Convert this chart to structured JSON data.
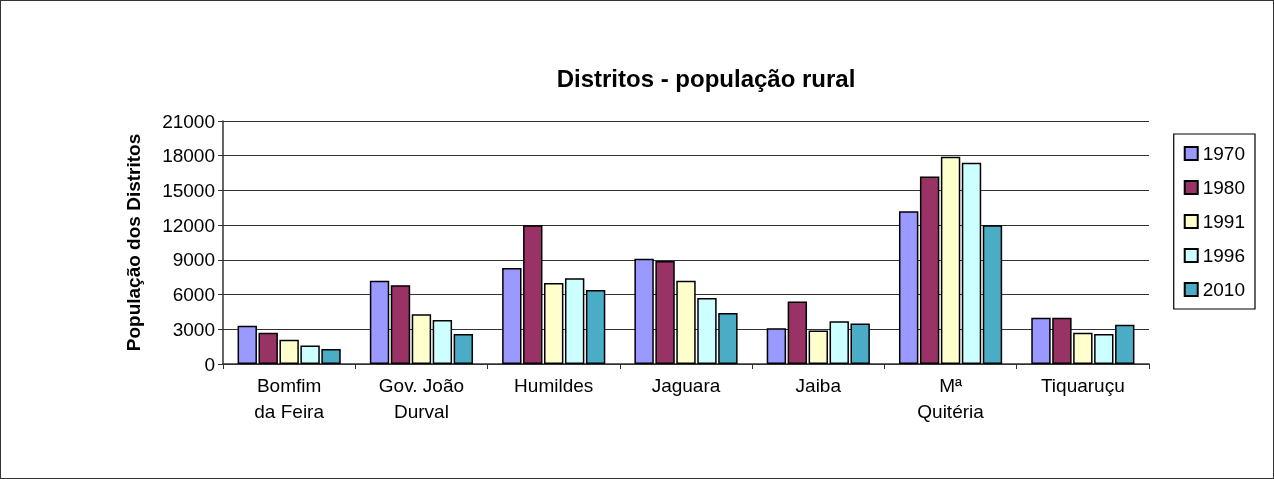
{
  "chart_data": {
    "type": "bar",
    "title": "Distritos - população rural",
    "ylabel": "População dos Distritos",
    "categories": [
      "Bomfim\nda Feira",
      "Gov. João\nDurval",
      "Humildes",
      "Jaguara",
      "Jaiba",
      "Mª\nQuitéria",
      "Tiquaruçu"
    ],
    "series": [
      {
        "name": "1970",
        "color": "#9999ff",
        "values": [
          3300,
          7200,
          8300,
          9100,
          3100,
          13200,
          4000
        ]
      },
      {
        "name": "1980",
        "color": "#993366",
        "values": [
          2700,
          6800,
          12000,
          8900,
          5400,
          16200,
          4000
        ]
      },
      {
        "name": "1991",
        "color": "#ffffcc",
        "values": [
          2100,
          4300,
          7000,
          7200,
          2900,
          17900,
          2700
        ]
      },
      {
        "name": "1996",
        "color": "#ccffff",
        "values": [
          1600,
          3800,
          7400,
          5700,
          3700,
          17400,
          2600
        ]
      },
      {
        "name": "2010",
        "color": "#4bacc6",
        "values": [
          1300,
          2600,
          6400,
          4400,
          3500,
          12000,
          3400
        ]
      }
    ],
    "ylim": [
      0,
      21000
    ],
    "yticks": [
      0,
      3000,
      6000,
      9000,
      12000,
      15000,
      18000,
      21000
    ],
    "grid": "y",
    "legend": "right"
  }
}
